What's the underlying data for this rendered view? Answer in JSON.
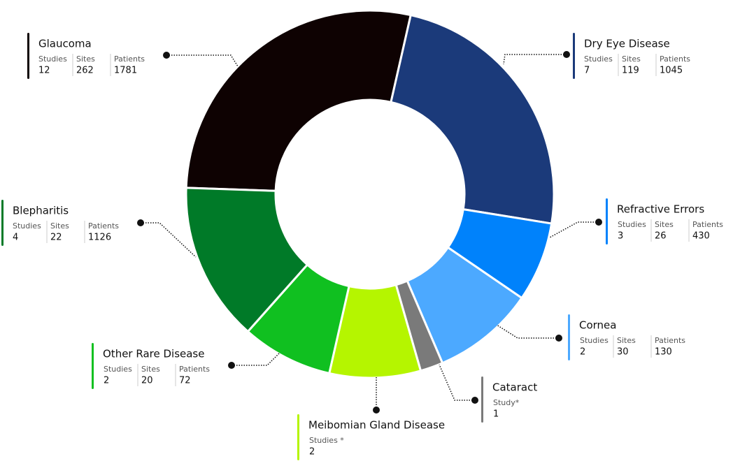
{
  "chart_data": {
    "type": "donut",
    "categories": [
      "Glaucoma",
      "Dry Eye Disease",
      "Refractive Errors",
      "Cornea",
      "Cataract",
      "Meibomian Gland Disease",
      "Other Rare Disease",
      "Blepharitis"
    ],
    "values": [
      28,
      24,
      7,
      9,
      2,
      8,
      8,
      14
    ],
    "colors": [
      "#0e0202",
      "#1b3a7a",
      "#0082fb",
      "#4ca9ff",
      "#7a7a7a",
      "#b5f500",
      "#10c020",
      "#007a28"
    ],
    "details": [
      [
        {
          "label": "Studies",
          "value": 12
        },
        {
          "label": "Sites",
          "value": 262
        },
        {
          "label": "Patients",
          "value": 1781
        }
      ],
      [
        {
          "label": "Studies",
          "value": 7
        },
        {
          "label": "Sites",
          "value": 119
        },
        {
          "label": "Patients",
          "value": 1045
        }
      ],
      [
        {
          "label": "Studies",
          "value": 3
        },
        {
          "label": "Sites",
          "value": 26
        },
        {
          "label": "Patients",
          "value": 430
        }
      ],
      [
        {
          "label": "Studies",
          "value": 2
        },
        {
          "label": "Sites",
          "value": 30
        },
        {
          "label": "Patients",
          "value": 130
        }
      ],
      [
        {
          "label": "Study*",
          "value": 1
        }
      ],
      [
        {
          "label": "Studies *",
          "value": 2
        }
      ],
      [
        {
          "label": "Studies",
          "value": 2
        },
        {
          "label": "Sites",
          "value": 20
        },
        {
          "label": "Patients",
          "value": 72
        }
      ],
      [
        {
          "label": "Studies",
          "value": 4
        },
        {
          "label": "Sites",
          "value": 22
        },
        {
          "label": "Patients",
          "value": 1126
        }
      ]
    ]
  }
}
